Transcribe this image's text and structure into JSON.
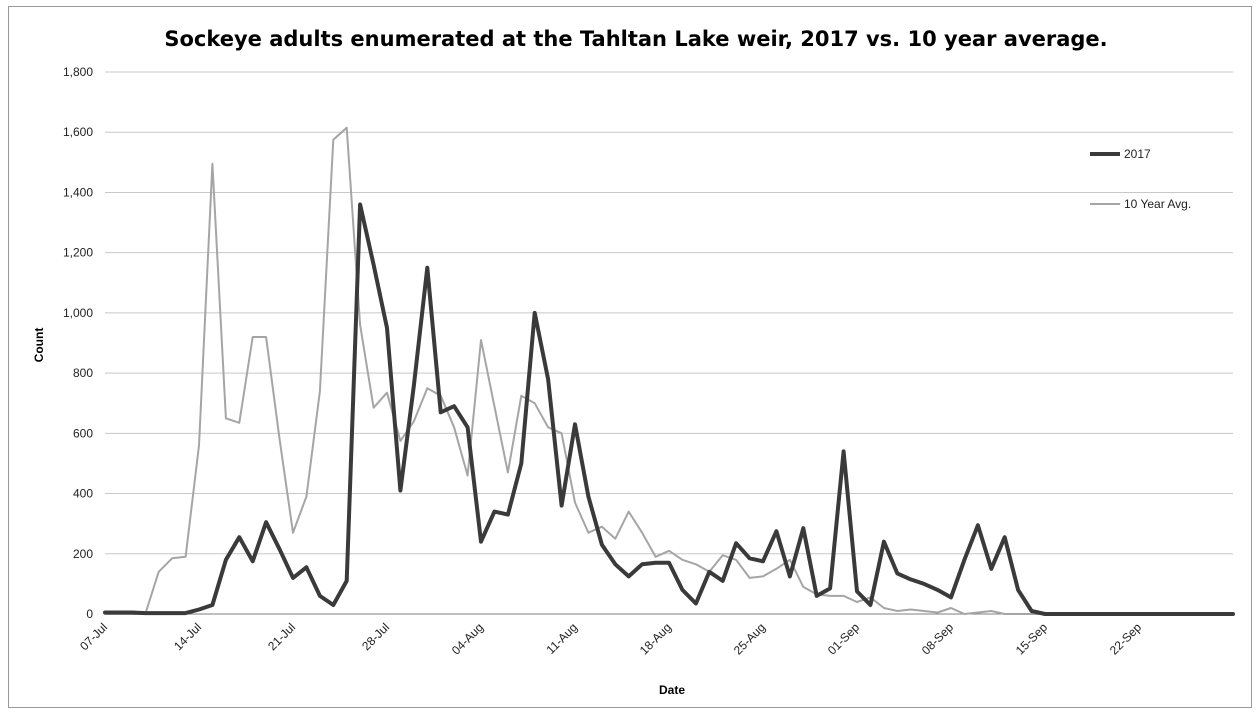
{
  "chart_data": {
    "type": "line",
    "title": "Sockeye adults enumerated at the Tahltan Lake weir, 2017 vs. 10 year average.",
    "xlabel": "Date",
    "ylabel": "Count",
    "ylim": [
      0,
      1800
    ],
    "y_ticks": [
      0,
      200,
      400,
      600,
      800,
      1000,
      1200,
      1400,
      1600,
      1800
    ],
    "y_tick_labels": [
      "0",
      "200",
      "400",
      "600",
      "800",
      "1,000",
      "1,200",
      "1,400",
      "1,600",
      "1,800"
    ],
    "x_start": "07-Jul",
    "x_end": "29-Sep",
    "x_tick_labels": [
      "07-Jul",
      "14-Jul",
      "21-Jul",
      "28-Jul",
      "04-Aug",
      "11-Aug",
      "18-Aug",
      "25-Aug",
      "01-Sep",
      "08-Sep",
      "15-Sep",
      "22-Sep"
    ],
    "grid": "horizontal",
    "legend_position": "right",
    "series": [
      {
        "name": "2017",
        "color": "#3a3a3a",
        "dates": [
          "07-Jul",
          "08-Jul",
          "09-Jul",
          "10-Jul",
          "11-Jul",
          "12-Jul",
          "13-Jul",
          "14-Jul",
          "15-Jul",
          "16-Jul",
          "17-Jul",
          "18-Jul",
          "19-Jul",
          "20-Jul",
          "21-Jul",
          "22-Jul",
          "23-Jul",
          "24-Jul",
          "25-Jul",
          "26-Jul",
          "27-Jul",
          "28-Jul",
          "29-Jul",
          "30-Jul",
          "31-Jul",
          "01-Aug",
          "02-Aug",
          "03-Aug",
          "04-Aug",
          "05-Aug",
          "06-Aug",
          "07-Aug",
          "08-Aug",
          "09-Aug",
          "10-Aug",
          "11-Aug",
          "12-Aug",
          "13-Aug",
          "14-Aug",
          "15-Aug",
          "16-Aug",
          "17-Aug",
          "18-Aug",
          "19-Aug",
          "20-Aug",
          "21-Aug",
          "22-Aug",
          "23-Aug",
          "24-Aug",
          "25-Aug",
          "26-Aug",
          "27-Aug",
          "28-Aug",
          "29-Aug",
          "30-Aug",
          "31-Aug",
          "01-Sep",
          "02-Sep",
          "03-Sep",
          "04-Sep",
          "05-Sep",
          "06-Sep",
          "07-Sep",
          "08-Sep",
          "09-Sep",
          "10-Sep",
          "11-Sep",
          "12-Sep",
          "13-Sep",
          "14-Sep",
          "15-Sep",
          "16-Sep",
          "17-Sep",
          "18-Sep",
          "19-Sep",
          "20-Sep",
          "21-Sep",
          "22-Sep",
          "23-Sep",
          "24-Sep",
          "25-Sep",
          "26-Sep",
          "27-Sep",
          "28-Sep",
          "29-Sep"
        ],
        "values": [
          5,
          5,
          5,
          3,
          3,
          3,
          3,
          15,
          30,
          180,
          255,
          175,
          305,
          215,
          120,
          155,
          60,
          30,
          110,
          1360,
          1160,
          950,
          410,
          760,
          1150,
          670,
          690,
          620,
          240,
          340,
          330,
          500,
          1000,
          780,
          360,
          630,
          390,
          230,
          165,
          125,
          165,
          170,
          170,
          80,
          35,
          140,
          110,
          235,
          185,
          175,
          275,
          125,
          285,
          60,
          85,
          540,
          75,
          30,
          240,
          135,
          115,
          100,
          80,
          55,
          180,
          295,
          150,
          255,
          80,
          10,
          0,
          0,
          0,
          0,
          0,
          0,
          0,
          0,
          0,
          0,
          0,
          0,
          0,
          0,
          0
        ]
      },
      {
        "name": "10 Year Avg.",
        "color": "#a5a5a5",
        "dates": [
          "07-Jul",
          "08-Jul",
          "09-Jul",
          "10-Jul",
          "11-Jul",
          "12-Jul",
          "13-Jul",
          "14-Jul",
          "15-Jul",
          "16-Jul",
          "17-Jul",
          "18-Jul",
          "19-Jul",
          "20-Jul",
          "21-Jul",
          "22-Jul",
          "23-Jul",
          "24-Jul",
          "25-Jul",
          "26-Jul",
          "27-Jul",
          "28-Jul",
          "29-Jul",
          "30-Jul",
          "31-Jul",
          "01-Aug",
          "02-Aug",
          "03-Aug",
          "04-Aug",
          "05-Aug",
          "06-Aug",
          "07-Aug",
          "08-Aug",
          "09-Aug",
          "10-Aug",
          "11-Aug",
          "12-Aug",
          "13-Aug",
          "14-Aug",
          "15-Aug",
          "16-Aug",
          "17-Aug",
          "18-Aug",
          "19-Aug",
          "20-Aug",
          "21-Aug",
          "22-Aug",
          "23-Aug",
          "24-Aug",
          "25-Aug",
          "26-Aug",
          "27-Aug",
          "28-Aug",
          "29-Aug",
          "30-Aug",
          "31-Aug",
          "01-Sep",
          "02-Sep",
          "03-Sep",
          "04-Sep",
          "05-Sep",
          "06-Sep",
          "07-Sep",
          "08-Sep",
          "09-Sep",
          "10-Sep",
          "11-Sep",
          "12-Sep",
          "13-Sep",
          "14-Sep",
          "15-Sep",
          "16-Sep",
          "17-Sep",
          "18-Sep",
          "19-Sep",
          "20-Sep",
          "21-Sep",
          "22-Sep",
          "23-Sep",
          "24-Sep",
          "25-Sep",
          "26-Sep",
          "27-Sep",
          "28-Sep",
          "29-Sep"
        ],
        "values": [
          0,
          0,
          0,
          0,
          140,
          185,
          190,
          560,
          1495,
          650,
          635,
          920,
          920,
          580,
          270,
          390,
          740,
          1575,
          1615,
          960,
          685,
          735,
          575,
          640,
          750,
          725,
          620,
          460,
          910,
          690,
          470,
          725,
          700,
          620,
          600,
          370,
          270,
          290,
          250,
          340,
          270,
          190,
          210,
          180,
          165,
          140,
          195,
          180,
          120,
          125,
          150,
          180,
          90,
          65,
          60,
          60,
          40,
          55,
          20,
          10,
          15,
          10,
          5,
          20,
          0,
          5,
          10,
          0,
          0,
          0,
          0,
          0,
          0,
          0,
          0,
          0,
          0,
          0,
          0,
          0,
          0,
          0,
          0,
          0,
          0
        ]
      }
    ]
  }
}
